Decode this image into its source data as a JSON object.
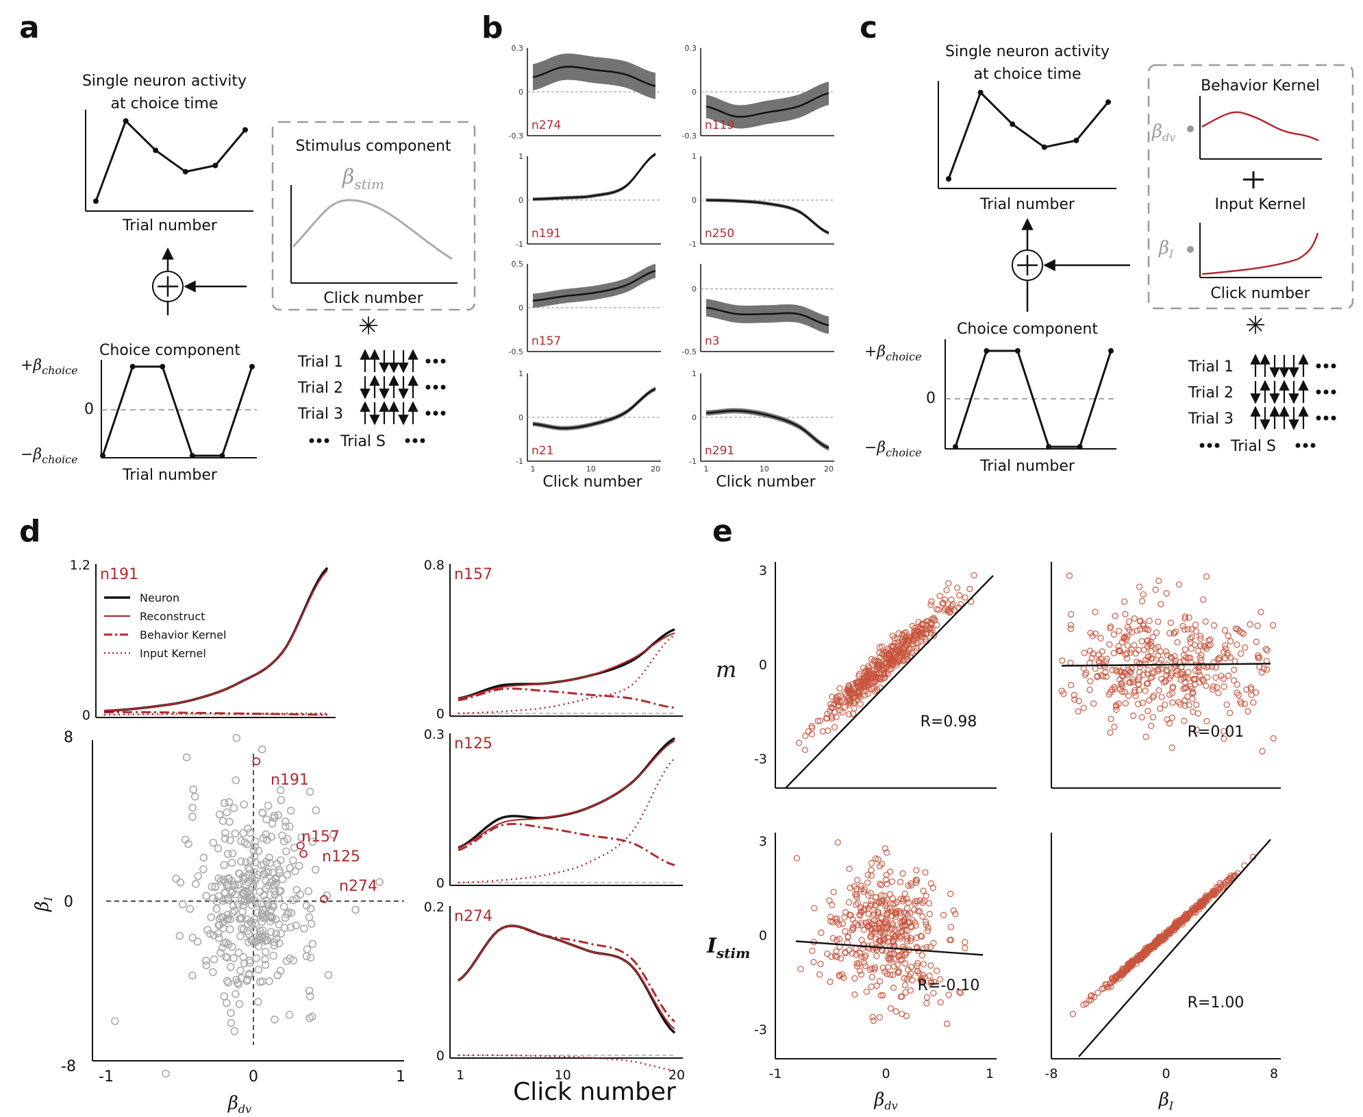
{
  "colors": {
    "red": "#b2292e",
    "scatter_red": "#c8553d",
    "gray": "#9a9a9a",
    "black": "#111111",
    "band": "#6b6b6b"
  },
  "letters": {
    "a": "a",
    "b": "b",
    "c": "c",
    "d": "d",
    "e": "e"
  },
  "panel_a": {
    "top_title_1": "Single neuron activity",
    "top_title_2": "at choice time",
    "top_xlabel": "Trial number",
    "stim_title": "Stimulus component",
    "stim_beta": "β",
    "stim_sub": "stim",
    "stim_xlabel": "Click number",
    "choice_title": "Choice component",
    "plus_beta": "+β",
    "minus_beta": "−β",
    "choice_sub": "choice",
    "zero": "0",
    "choice_xlabel": "Trial number",
    "trials": [
      "Trial 1",
      "Trial 2",
      "Trial 3"
    ],
    "trial_s": "Trial S",
    "activity_values": [
      0.05,
      0.95,
      0.62,
      0.38,
      0.45,
      0.85
    ],
    "choice_values": [
      -1,
      1,
      1,
      -1,
      -1,
      1
    ]
  },
  "panel_b": {
    "xlabel": "Click number",
    "xticks": [
      "1",
      "10",
      "20"
    ],
    "neurons": [
      {
        "id": "n274",
        "yticks": [
          "0.3",
          "0",
          "-0.3"
        ],
        "ylim": [
          -0.3,
          0.3
        ],
        "mean": [
          0.1,
          0.17,
          0.15,
          0.12,
          0.04
        ],
        "band": 0.09
      },
      {
        "id": "n119",
        "yticks": [
          "0.3",
          "0",
          "-0.3"
        ],
        "ylim": [
          -0.3,
          0.3
        ],
        "mean": [
          -0.1,
          -0.17,
          -0.14,
          -0.1,
          -0.01
        ],
        "band": 0.08
      },
      {
        "id": "n191",
        "yticks": [
          "1",
          "0",
          "-1"
        ],
        "ylim": [
          -1,
          1
        ],
        "mean": [
          0.02,
          0.05,
          0.1,
          0.3,
          1.05
        ],
        "band": 0.04
      },
      {
        "id": "n250",
        "yticks": [
          "1",
          "0",
          "-1"
        ],
        "ylim": [
          -1,
          1
        ],
        "mean": [
          0,
          -0.02,
          -0.08,
          -0.25,
          -0.75
        ],
        "band": 0.04
      },
      {
        "id": "n157",
        "yticks": [
          "0.5",
          "0",
          "-0.5"
        ],
        "ylim": [
          -0.5,
          0.5
        ],
        "mean": [
          0.08,
          0.13,
          0.17,
          0.25,
          0.42
        ],
        "band": 0.08
      },
      {
        "id": "n3",
        "yticks": [
          "0",
          "-0.5"
        ],
        "ylim": [
          -0.5,
          0.2
        ],
        "mean": [
          -0.15,
          -0.2,
          -0.2,
          -0.2,
          -0.29
        ],
        "band": 0.07
      },
      {
        "id": "n21",
        "yticks": [
          "1",
          "0",
          "-1"
        ],
        "ylim": [
          -1,
          1
        ],
        "mean": [
          -0.15,
          -0.25,
          -0.15,
          0.1,
          0.65
        ],
        "band": 0.05
      },
      {
        "id": "n291",
        "yticks": [
          "1",
          "0",
          "-1"
        ],
        "ylim": [
          -1,
          1
        ],
        "mean": [
          0.1,
          0.15,
          0.05,
          -0.2,
          -0.7
        ],
        "band": 0.06
      }
    ]
  },
  "panel_c": {
    "top_title_1": "Single neuron activity",
    "top_title_2": "at choice time",
    "top_xlabel": "Trial number",
    "behav_title": "Behavior Kernel",
    "input_title": "Input Kernel",
    "kernel_xlabel": "Click number",
    "beta_dv": "β",
    "dv_sub": "dv",
    "beta_i": "β",
    "i_sub": "I",
    "choice_title": "Choice component",
    "plus_beta": "+β",
    "minus_beta": "−β",
    "choice_sub": "choice",
    "zero": "0",
    "choice_xlabel": "Trial number",
    "trials": [
      "Trial 1",
      "Trial 2",
      "Trial 3"
    ],
    "trial_s": "Trial S"
  },
  "panel_d": {
    "legend": [
      "Neuron",
      "Reconstruct",
      "Behavior Kernel",
      "Input Kernel"
    ],
    "top_left": {
      "id": "n191",
      "yticks": [
        "1.2",
        "0"
      ]
    },
    "right": [
      {
        "id": "n157",
        "yticks": [
          "0.8",
          "0"
        ]
      },
      {
        "id": "n125",
        "yticks": [
          "0.3",
          "0"
        ]
      },
      {
        "id": "n274",
        "yticks": [
          "0.2",
          "0"
        ]
      }
    ],
    "scatter": {
      "ylabel": "β",
      "ysub": "I",
      "xlabel": "β",
      "xsub": "dv",
      "yticks": [
        "8",
        "0",
        "-8"
      ],
      "xticks": [
        "-1",
        "0",
        "1"
      ],
      "labels": [
        "n191",
        "n157",
        "n125",
        "n274"
      ],
      "highlight": [
        {
          "id": "n191",
          "x": 0.02,
          "y": 6.8
        },
        {
          "id": "n157",
          "x": 0.32,
          "y": 2.7
        },
        {
          "id": "n125",
          "x": 0.34,
          "y": 2.3
        },
        {
          "id": "n274",
          "x": 0.48,
          "y": 0.1
        }
      ]
    },
    "xlabel": "Click number",
    "xticks": [
      "1",
      "10",
      "20"
    ]
  },
  "panel_e": {
    "ylabels": {
      "m": "m",
      "istim": "I",
      "istim_sub": "stim"
    },
    "subplots": [
      {
        "r": "R=0.98",
        "xticks": [],
        "yticks": [
          "3",
          "0",
          "-3"
        ]
      },
      {
        "r": "R=0.01",
        "xticks": [],
        "yticks": []
      },
      {
        "r": "R=-0.10",
        "xticks": [
          "-1",
          "0",
          "1"
        ],
        "yticks": [
          "3",
          "0",
          "-3"
        ],
        "xlabel": "β",
        "xsub": "dv"
      },
      {
        "r": "R=1.00",
        "xticks": [
          "-8",
          "0",
          "8"
        ],
        "yticks": [],
        "xlabel": "β",
        "xsub": "I"
      }
    ]
  }
}
